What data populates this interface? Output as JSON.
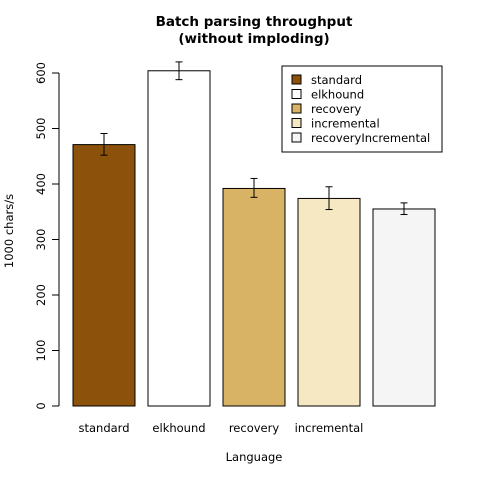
{
  "chart_data": {
    "type": "bar",
    "title_line1": "Batch parsing throughput",
    "title_line2": "(without imploding)",
    "xlabel": "Language",
    "ylabel": "1000 chars/s",
    "ylim": [
      0,
      600
    ],
    "yticks": [
      0,
      100,
      200,
      300,
      400,
      500,
      600
    ],
    "categories": [
      "standard",
      "elkhound",
      "recovery",
      "incremental",
      ""
    ],
    "values": [
      471,
      604,
      392,
      374,
      355
    ],
    "errors": [
      [
        452,
        491
      ],
      [
        588,
        620
      ],
      [
        376,
        410
      ],
      [
        354,
        395
      ],
      [
        345,
        366
      ]
    ],
    "colors": [
      "#8c510a",
      "#ffffff",
      "#d8b365",
      "#f6e8c3",
      "#f5f5f5"
    ],
    "legend": {
      "placement": "top-right",
      "entries": [
        "standard",
        "elkhound",
        "recovery",
        "incremental",
        "recoveryIncremental"
      ]
    },
    "grid": false
  }
}
